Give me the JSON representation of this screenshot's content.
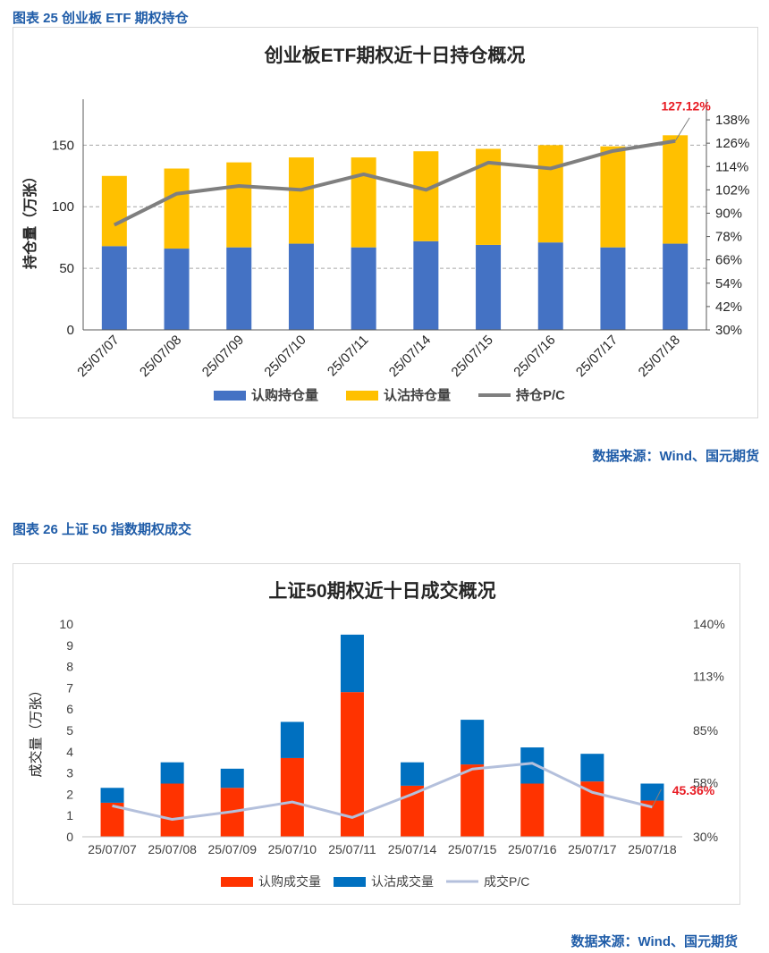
{
  "figure1": {
    "caption": "图表 25 创业板 ETF 期权持仓",
    "source": "数据来源：Wind、国元期货",
    "chart_data": {
      "type": "bar",
      "stacked": true,
      "title": "创业板ETF期权近十日持仓概况",
      "ylabel": "持仓量（万张）",
      "ylim": [
        0,
        180
      ],
      "yticks": [
        "0",
        "50",
        "100",
        "150"
      ],
      "y2lim": [
        30,
        144
      ],
      "y2ticks": [
        "30%",
        "42%",
        "54%",
        "66%",
        "78%",
        "90%",
        "102%",
        "114%",
        "126%",
        "138%"
      ],
      "grid": true,
      "legend_position": "bottom",
      "categories": [
        "25/07/07",
        "25/07/08",
        "25/07/09",
        "25/07/10",
        "25/07/11",
        "25/07/14",
        "25/07/15",
        "25/07/16",
        "25/07/17",
        "25/07/18"
      ],
      "series": [
        {
          "name": "认购持仓量",
          "type": "bar",
          "color": "#4472c4",
          "values": [
            68,
            66,
            67,
            70,
            67,
            72,
            69,
            71,
            67,
            70
          ]
        },
        {
          "name": "认沽持仓量",
          "type": "bar",
          "color": "#ffc000",
          "values": [
            57,
            65,
            69,
            70,
            73,
            73,
            78,
            79,
            82,
            88
          ]
        },
        {
          "name": "持仓P/C",
          "type": "line",
          "axis": "right",
          "color": "#7f7f7f",
          "values": [
            84,
            100,
            104,
            102,
            110,
            102,
            116,
            113,
            122,
            127.12
          ]
        }
      ],
      "annotation": {
        "text": "127.12%",
        "color": "#e81b23"
      }
    }
  },
  "figure2": {
    "caption": "图表 26 上证 50 指数期权成交",
    "source": "数据来源：Wind、国元期货",
    "chart_data": {
      "type": "bar",
      "stacked": true,
      "title": "上证50期权近十日成交概况",
      "ylabel": "成交量（万张）",
      "ylim": [
        0,
        10
      ],
      "yticks": [
        "0",
        "1",
        "2",
        "3",
        "4",
        "5",
        "6",
        "7",
        "8",
        "9",
        "10"
      ],
      "y2lim": [
        30,
        140
      ],
      "y2ticks": [
        "30%",
        "58%",
        "85%",
        "113%",
        "140%"
      ],
      "grid": false,
      "legend_position": "bottom",
      "categories": [
        "25/07/07",
        "25/07/08",
        "25/07/09",
        "25/07/10",
        "25/07/11",
        "25/07/14",
        "25/07/15",
        "25/07/16",
        "25/07/17",
        "25/07/18"
      ],
      "series": [
        {
          "name": "认购成交量",
          "type": "bar",
          "color": "#ff3300",
          "values": [
            1.6,
            2.5,
            2.3,
            3.7,
            6.8,
            2.4,
            3.4,
            2.5,
            2.6,
            1.7
          ]
        },
        {
          "name": "认沽成交量",
          "type": "bar",
          "color": "#0070c0",
          "values": [
            0.7,
            1.0,
            0.9,
            1.7,
            2.7,
            1.1,
            2.1,
            1.7,
            1.3,
            0.8
          ]
        },
        {
          "name": "成交P/C",
          "type": "line",
          "axis": "right",
          "color": "#b4c0dc",
          "values": [
            46,
            39,
            43,
            48,
            40,
            52,
            65,
            68,
            53,
            45.36
          ]
        }
      ],
      "annotation": {
        "text": "45.36%",
        "color": "#e81b23"
      }
    }
  }
}
